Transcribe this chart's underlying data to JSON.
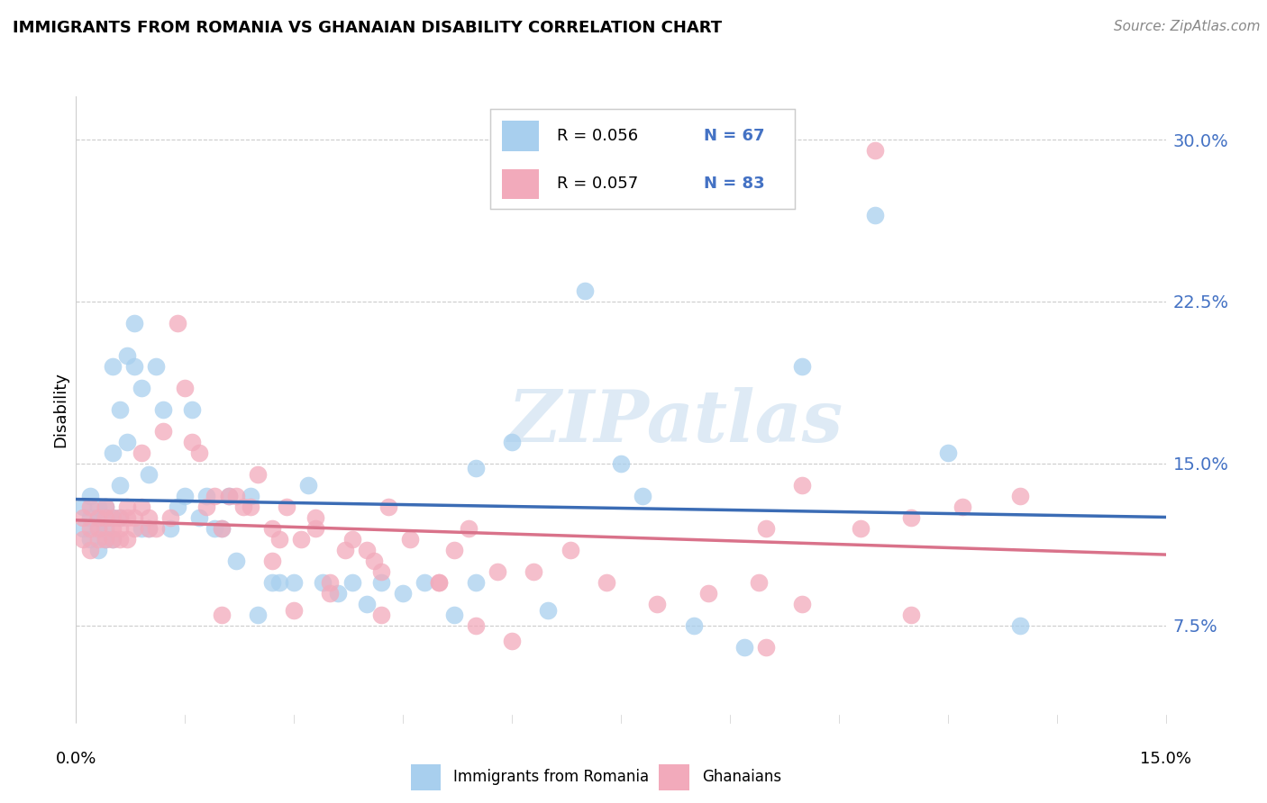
{
  "title": "IMMIGRANTS FROM ROMANIA VS GHANAIAN DISABILITY CORRELATION CHART",
  "source": "Source: ZipAtlas.com",
  "ylabel": "Disability",
  "y_ticks": [
    0.075,
    0.15,
    0.225,
    0.3
  ],
  "y_tick_labels": [
    "7.5%",
    "15.0%",
    "22.5%",
    "30.0%"
  ],
  "x_range": [
    0.0,
    0.15
  ],
  "y_range": [
    0.03,
    0.32
  ],
  "watermark": "ZIPatlas",
  "color_blue": "#A8CFEE",
  "color_pink": "#F2AABB",
  "line_blue": "#3B6CB5",
  "line_pink": "#D9728A",
  "grid_color": "#CCCCCC",
  "romania_x": [
    0.001,
    0.001,
    0.002,
    0.002,
    0.002,
    0.003,
    0.003,
    0.003,
    0.003,
    0.004,
    0.004,
    0.004,
    0.004,
    0.005,
    0.005,
    0.005,
    0.005,
    0.006,
    0.006,
    0.006,
    0.007,
    0.007,
    0.008,
    0.008,
    0.009,
    0.009,
    0.01,
    0.01,
    0.011,
    0.012,
    0.013,
    0.014,
    0.015,
    0.016,
    0.017,
    0.018,
    0.019,
    0.02,
    0.021,
    0.022,
    0.024,
    0.025,
    0.027,
    0.028,
    0.03,
    0.032,
    0.034,
    0.036,
    0.038,
    0.04,
    0.042,
    0.045,
    0.048,
    0.052,
    0.055,
    0.06,
    0.065,
    0.07,
    0.078,
    0.085,
    0.092,
    0.1,
    0.11,
    0.12,
    0.13,
    0.075,
    0.055
  ],
  "romania_y": [
    0.13,
    0.12,
    0.125,
    0.115,
    0.135,
    0.12,
    0.125,
    0.11,
    0.13,
    0.125,
    0.115,
    0.13,
    0.12,
    0.195,
    0.155,
    0.125,
    0.115,
    0.14,
    0.175,
    0.125,
    0.2,
    0.16,
    0.195,
    0.215,
    0.185,
    0.12,
    0.145,
    0.12,
    0.195,
    0.175,
    0.12,
    0.13,
    0.135,
    0.175,
    0.125,
    0.135,
    0.12,
    0.12,
    0.135,
    0.105,
    0.135,
    0.08,
    0.095,
    0.095,
    0.095,
    0.14,
    0.095,
    0.09,
    0.095,
    0.085,
    0.095,
    0.09,
    0.095,
    0.08,
    0.095,
    0.16,
    0.082,
    0.23,
    0.135,
    0.075,
    0.065,
    0.195,
    0.265,
    0.155,
    0.075,
    0.15,
    0.148
  ],
  "ghana_x": [
    0.001,
    0.001,
    0.002,
    0.002,
    0.002,
    0.003,
    0.003,
    0.003,
    0.004,
    0.004,
    0.004,
    0.005,
    0.005,
    0.005,
    0.006,
    0.006,
    0.006,
    0.007,
    0.007,
    0.007,
    0.008,
    0.008,
    0.009,
    0.009,
    0.01,
    0.01,
    0.011,
    0.012,
    0.013,
    0.014,
    0.015,
    0.016,
    0.017,
    0.018,
    0.019,
    0.02,
    0.021,
    0.022,
    0.023,
    0.024,
    0.025,
    0.027,
    0.029,
    0.031,
    0.033,
    0.035,
    0.038,
    0.04,
    0.043,
    0.046,
    0.05,
    0.054,
    0.058,
    0.063,
    0.068,
    0.073,
    0.08,
    0.087,
    0.094,
    0.1,
    0.108,
    0.115,
    0.122,
    0.13,
    0.037,
    0.028,
    0.041,
    0.033,
    0.027,
    0.035,
    0.05,
    0.095,
    0.06,
    0.03,
    0.02,
    0.055,
    0.042,
    0.095,
    0.115,
    0.1,
    0.042,
    0.052,
    0.11
  ],
  "ghana_y": [
    0.125,
    0.115,
    0.12,
    0.13,
    0.11,
    0.125,
    0.115,
    0.12,
    0.115,
    0.125,
    0.13,
    0.12,
    0.125,
    0.115,
    0.12,
    0.125,
    0.115,
    0.125,
    0.13,
    0.115,
    0.125,
    0.12,
    0.13,
    0.155,
    0.12,
    0.125,
    0.12,
    0.165,
    0.125,
    0.215,
    0.185,
    0.16,
    0.155,
    0.13,
    0.135,
    0.12,
    0.135,
    0.135,
    0.13,
    0.13,
    0.145,
    0.12,
    0.13,
    0.115,
    0.125,
    0.095,
    0.115,
    0.11,
    0.13,
    0.115,
    0.095,
    0.12,
    0.1,
    0.1,
    0.11,
    0.095,
    0.085,
    0.09,
    0.095,
    0.085,
    0.12,
    0.125,
    0.13,
    0.135,
    0.11,
    0.115,
    0.105,
    0.12,
    0.105,
    0.09,
    0.095,
    0.12,
    0.068,
    0.082,
    0.08,
    0.075,
    0.08,
    0.065,
    0.08,
    0.14,
    0.1,
    0.11,
    0.295
  ]
}
